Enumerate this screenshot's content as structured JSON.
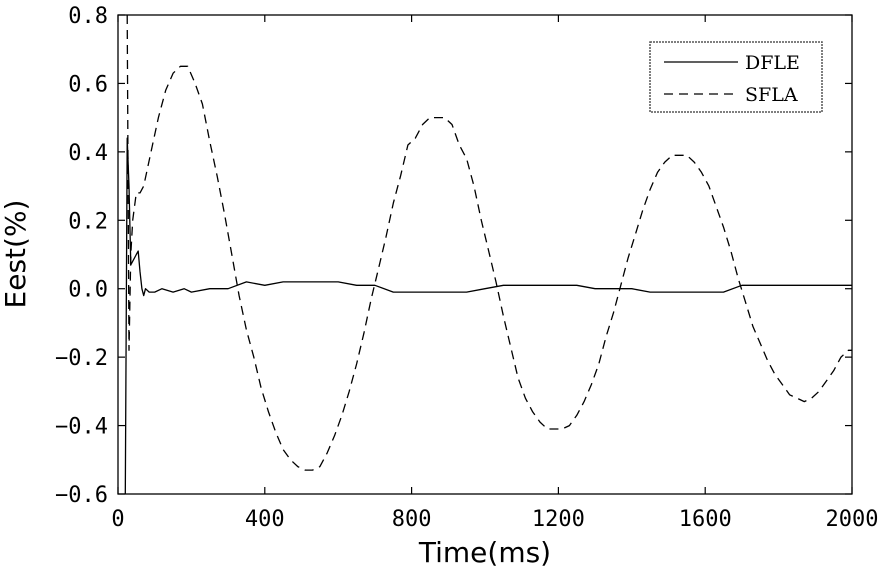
{
  "chart_data": {
    "type": "line",
    "title": "",
    "xlabel": "Time(ms)",
    "ylabel": "Eest(%)",
    "xlim": [
      0,
      2000
    ],
    "ylim": [
      -0.6,
      0.8
    ],
    "xticks": [
      0,
      400,
      800,
      1200,
      1600,
      2000
    ],
    "xtick_labels": [
      "0",
      "400",
      "800",
      "1200",
      "1600",
      "2000"
    ],
    "yticks": [
      -0.6,
      -0.4,
      -0.2,
      0.0,
      0.2,
      0.4,
      0.6,
      0.8
    ],
    "ytick_labels": [
      "−0.6",
      "−0.4",
      "−0.2",
      "0.0",
      "0.2",
      "0.4",
      "0.6",
      "0.8"
    ],
    "grid": false,
    "legend_position": "top-right",
    "series": [
      {
        "name": "DFLE",
        "style": "solid",
        "color": "#000000",
        "x": [
          0,
          20,
          25,
          30,
          35,
          45,
          50,
          55,
          60,
          65,
          70,
          75,
          85,
          100,
          120,
          150,
          180,
          200,
          250,
          300,
          350,
          400,
          450,
          500,
          550,
          600,
          650,
          700,
          750,
          800,
          850,
          900,
          950,
          1000,
          1050,
          1100,
          1150,
          1200,
          1250,
          1300,
          1350,
          1400,
          1450,
          1500,
          1550,
          1600,
          1650,
          1700,
          1750,
          1800,
          1850,
          1900,
          1950,
          2000
        ],
        "y": [
          null,
          -0.6,
          0.44,
          0.3,
          0.07,
          0.09,
          0.1,
          0.11,
          0.05,
          0.0,
          -0.02,
          0.0,
          -0.01,
          -0.01,
          0.0,
          -0.01,
          0.0,
          -0.01,
          0.0,
          0.0,
          0.02,
          0.01,
          0.02,
          0.02,
          0.02,
          0.02,
          0.01,
          0.01,
          -0.01,
          -0.01,
          -0.01,
          -0.01,
          -0.01,
          0.0,
          0.01,
          0.01,
          0.01,
          0.01,
          0.01,
          0.0,
          0.0,
          0.0,
          -0.01,
          -0.01,
          -0.01,
          -0.01,
          -0.01,
          0.01,
          0.01,
          0.01,
          0.01,
          0.01,
          0.01,
          0.01
        ]
      },
      {
        "name": "SFLA",
        "style": "dashed",
        "color": "#000000",
        "x": [
          25,
          30,
          35,
          40,
          50,
          60,
          70,
          90,
          110,
          130,
          150,
          170,
          190,
          210,
          230,
          250,
          270,
          290,
          310,
          330,
          350,
          370,
          390,
          410,
          430,
          450,
          470,
          490,
          510,
          530,
          550,
          570,
          590,
          610,
          630,
          650,
          670,
          690,
          710,
          730,
          750,
          770,
          790,
          810,
          830,
          850,
          870,
          890,
          910,
          930,
          950,
          970,
          990,
          1010,
          1030,
          1050,
          1070,
          1090,
          1110,
          1130,
          1150,
          1170,
          1190,
          1210,
          1230,
          1250,
          1270,
          1290,
          1310,
          1330,
          1350,
          1370,
          1390,
          1410,
          1430,
          1450,
          1470,
          1490,
          1510,
          1530,
          1550,
          1570,
          1590,
          1610,
          1630,
          1650,
          1670,
          1690,
          1710,
          1730,
          1750,
          1770,
          1790,
          1810,
          1830,
          1850,
          1870,
          1890,
          1910,
          1930,
          1950,
          1970,
          1990,
          2000
        ],
        "y": [
          0.8,
          -0.18,
          0.1,
          0.2,
          0.28,
          0.28,
          0.3,
          0.4,
          0.5,
          0.58,
          0.63,
          0.65,
          0.65,
          0.6,
          0.54,
          0.43,
          0.33,
          0.22,
          0.1,
          -0.02,
          -0.12,
          -0.2,
          -0.29,
          -0.36,
          -0.42,
          -0.47,
          -0.5,
          -0.52,
          -0.53,
          -0.53,
          -0.52,
          -0.48,
          -0.43,
          -0.37,
          -0.3,
          -0.22,
          -0.13,
          -0.03,
          0.06,
          0.15,
          0.25,
          0.33,
          0.42,
          0.44,
          0.48,
          0.5,
          0.5,
          0.5,
          0.48,
          0.42,
          0.38,
          0.3,
          0.2,
          0.11,
          0.02,
          -0.08,
          -0.17,
          -0.26,
          -0.32,
          -0.36,
          -0.39,
          -0.41,
          -0.41,
          -0.41,
          -0.4,
          -0.37,
          -0.33,
          -0.28,
          -0.22,
          -0.14,
          -0.07,
          0.01,
          0.09,
          0.16,
          0.23,
          0.29,
          0.34,
          0.37,
          0.39,
          0.39,
          0.39,
          0.37,
          0.34,
          0.3,
          0.24,
          0.18,
          0.11,
          0.03,
          -0.04,
          -0.11,
          -0.16,
          -0.21,
          -0.25,
          -0.28,
          -0.31,
          -0.32,
          -0.33,
          -0.32,
          -0.3,
          -0.27,
          -0.24,
          -0.2,
          -0.18,
          -0.18
        ]
      }
    ]
  }
}
